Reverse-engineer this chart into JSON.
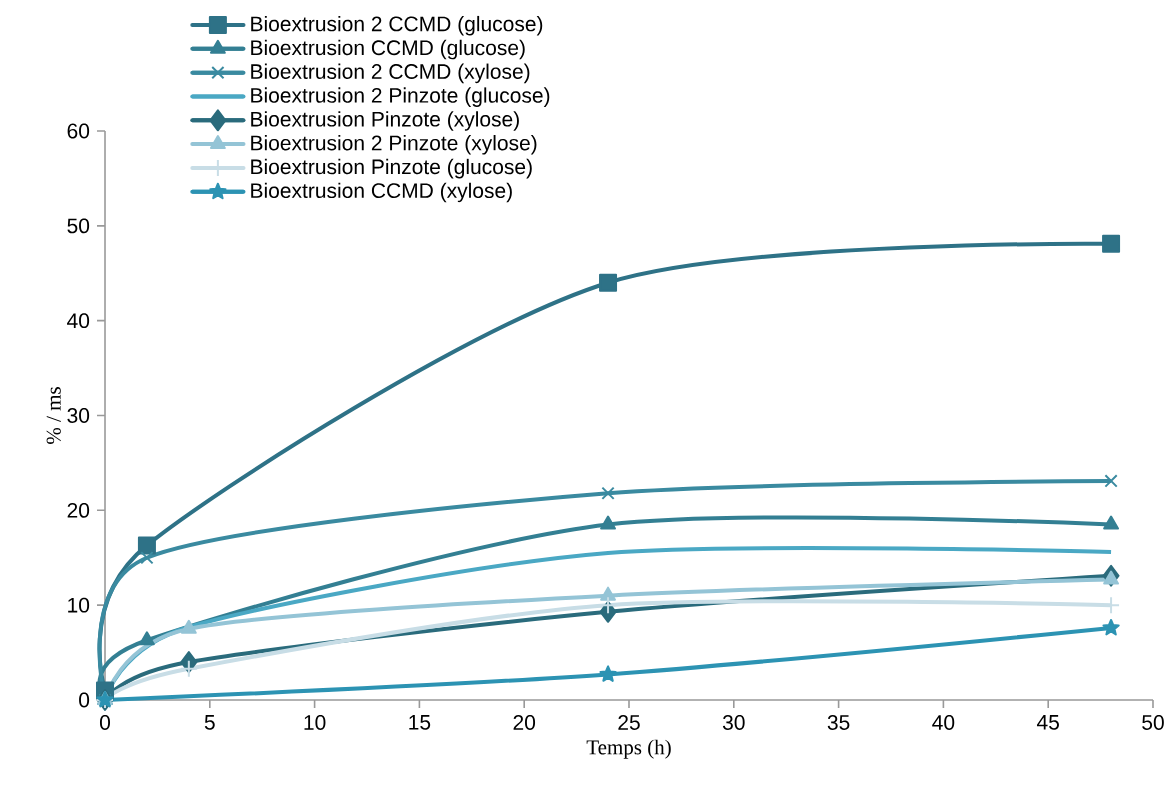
{
  "chart_data": {
    "type": "line",
    "xlabel": "Temps (h)",
    "ylabel": "% / ms",
    "xlim": [
      0,
      50
    ],
    "xticks": [
      0,
      5,
      10,
      15,
      20,
      25,
      30,
      35,
      40,
      45,
      50
    ],
    "ylim": [
      0,
      60
    ],
    "yticks": [
      0,
      10,
      20,
      30,
      40,
      50,
      60
    ],
    "legend": "top left",
    "line_style": "solid",
    "series": [
      {
        "name": "Bioextrusion 2 CCMD (glucose)",
        "color": "#2e7287",
        "marker": "square",
        "x": [
          0,
          2,
          24,
          48
        ],
        "values": [
          1,
          16.3,
          44,
          48.1
        ]
      },
      {
        "name": "Bioextrusion CCMD (glucose)",
        "color": "#337f93",
        "marker": "triangle",
        "x": [
          0,
          2,
          24,
          48
        ],
        "values": [
          0,
          6.3,
          18.5,
          18.5
        ]
      },
      {
        "name": "Bioextrusion 2 CCMD (xylose)",
        "color": "#3a8aa0",
        "marker": "cross",
        "x": [
          0,
          2,
          24,
          48
        ],
        "values": [
          0,
          15,
          21.8,
          23.1
        ]
      },
      {
        "name": "Bioextrusion 2 Pinzote (glucose)",
        "color": "#4aa8c4",
        "marker": "none",
        "x": [
          0,
          4,
          24,
          48
        ],
        "values": [
          0,
          7.7,
          15.5,
          15.6
        ]
      },
      {
        "name": "Bioextrusion Pinzote (xylose)",
        "color": "#2a6b7c",
        "marker": "diamond",
        "x": [
          0,
          4,
          24,
          48
        ],
        "values": [
          0,
          4,
          9.3,
          13.1
        ]
      },
      {
        "name": "Bioextrusion 2 Pinzote (xylose)",
        "color": "#94c4d6",
        "marker": "triangle",
        "x": [
          0,
          4,
          24,
          48
        ],
        "values": [
          0,
          7.5,
          11,
          12.7
        ]
      },
      {
        "name": "Bioextrusion Pinzote (glucose)",
        "color": "#c8dde6",
        "marker": "plus",
        "x": [
          0,
          4,
          24,
          48
        ],
        "values": [
          0,
          3.3,
          10,
          10
        ]
      },
      {
        "name": "Bioextrusion CCMD (xylose)",
        "color": "#2c93b3",
        "marker": "star",
        "x": [
          0,
          24,
          48
        ],
        "values": [
          0,
          2.7,
          7.6
        ]
      }
    ]
  }
}
